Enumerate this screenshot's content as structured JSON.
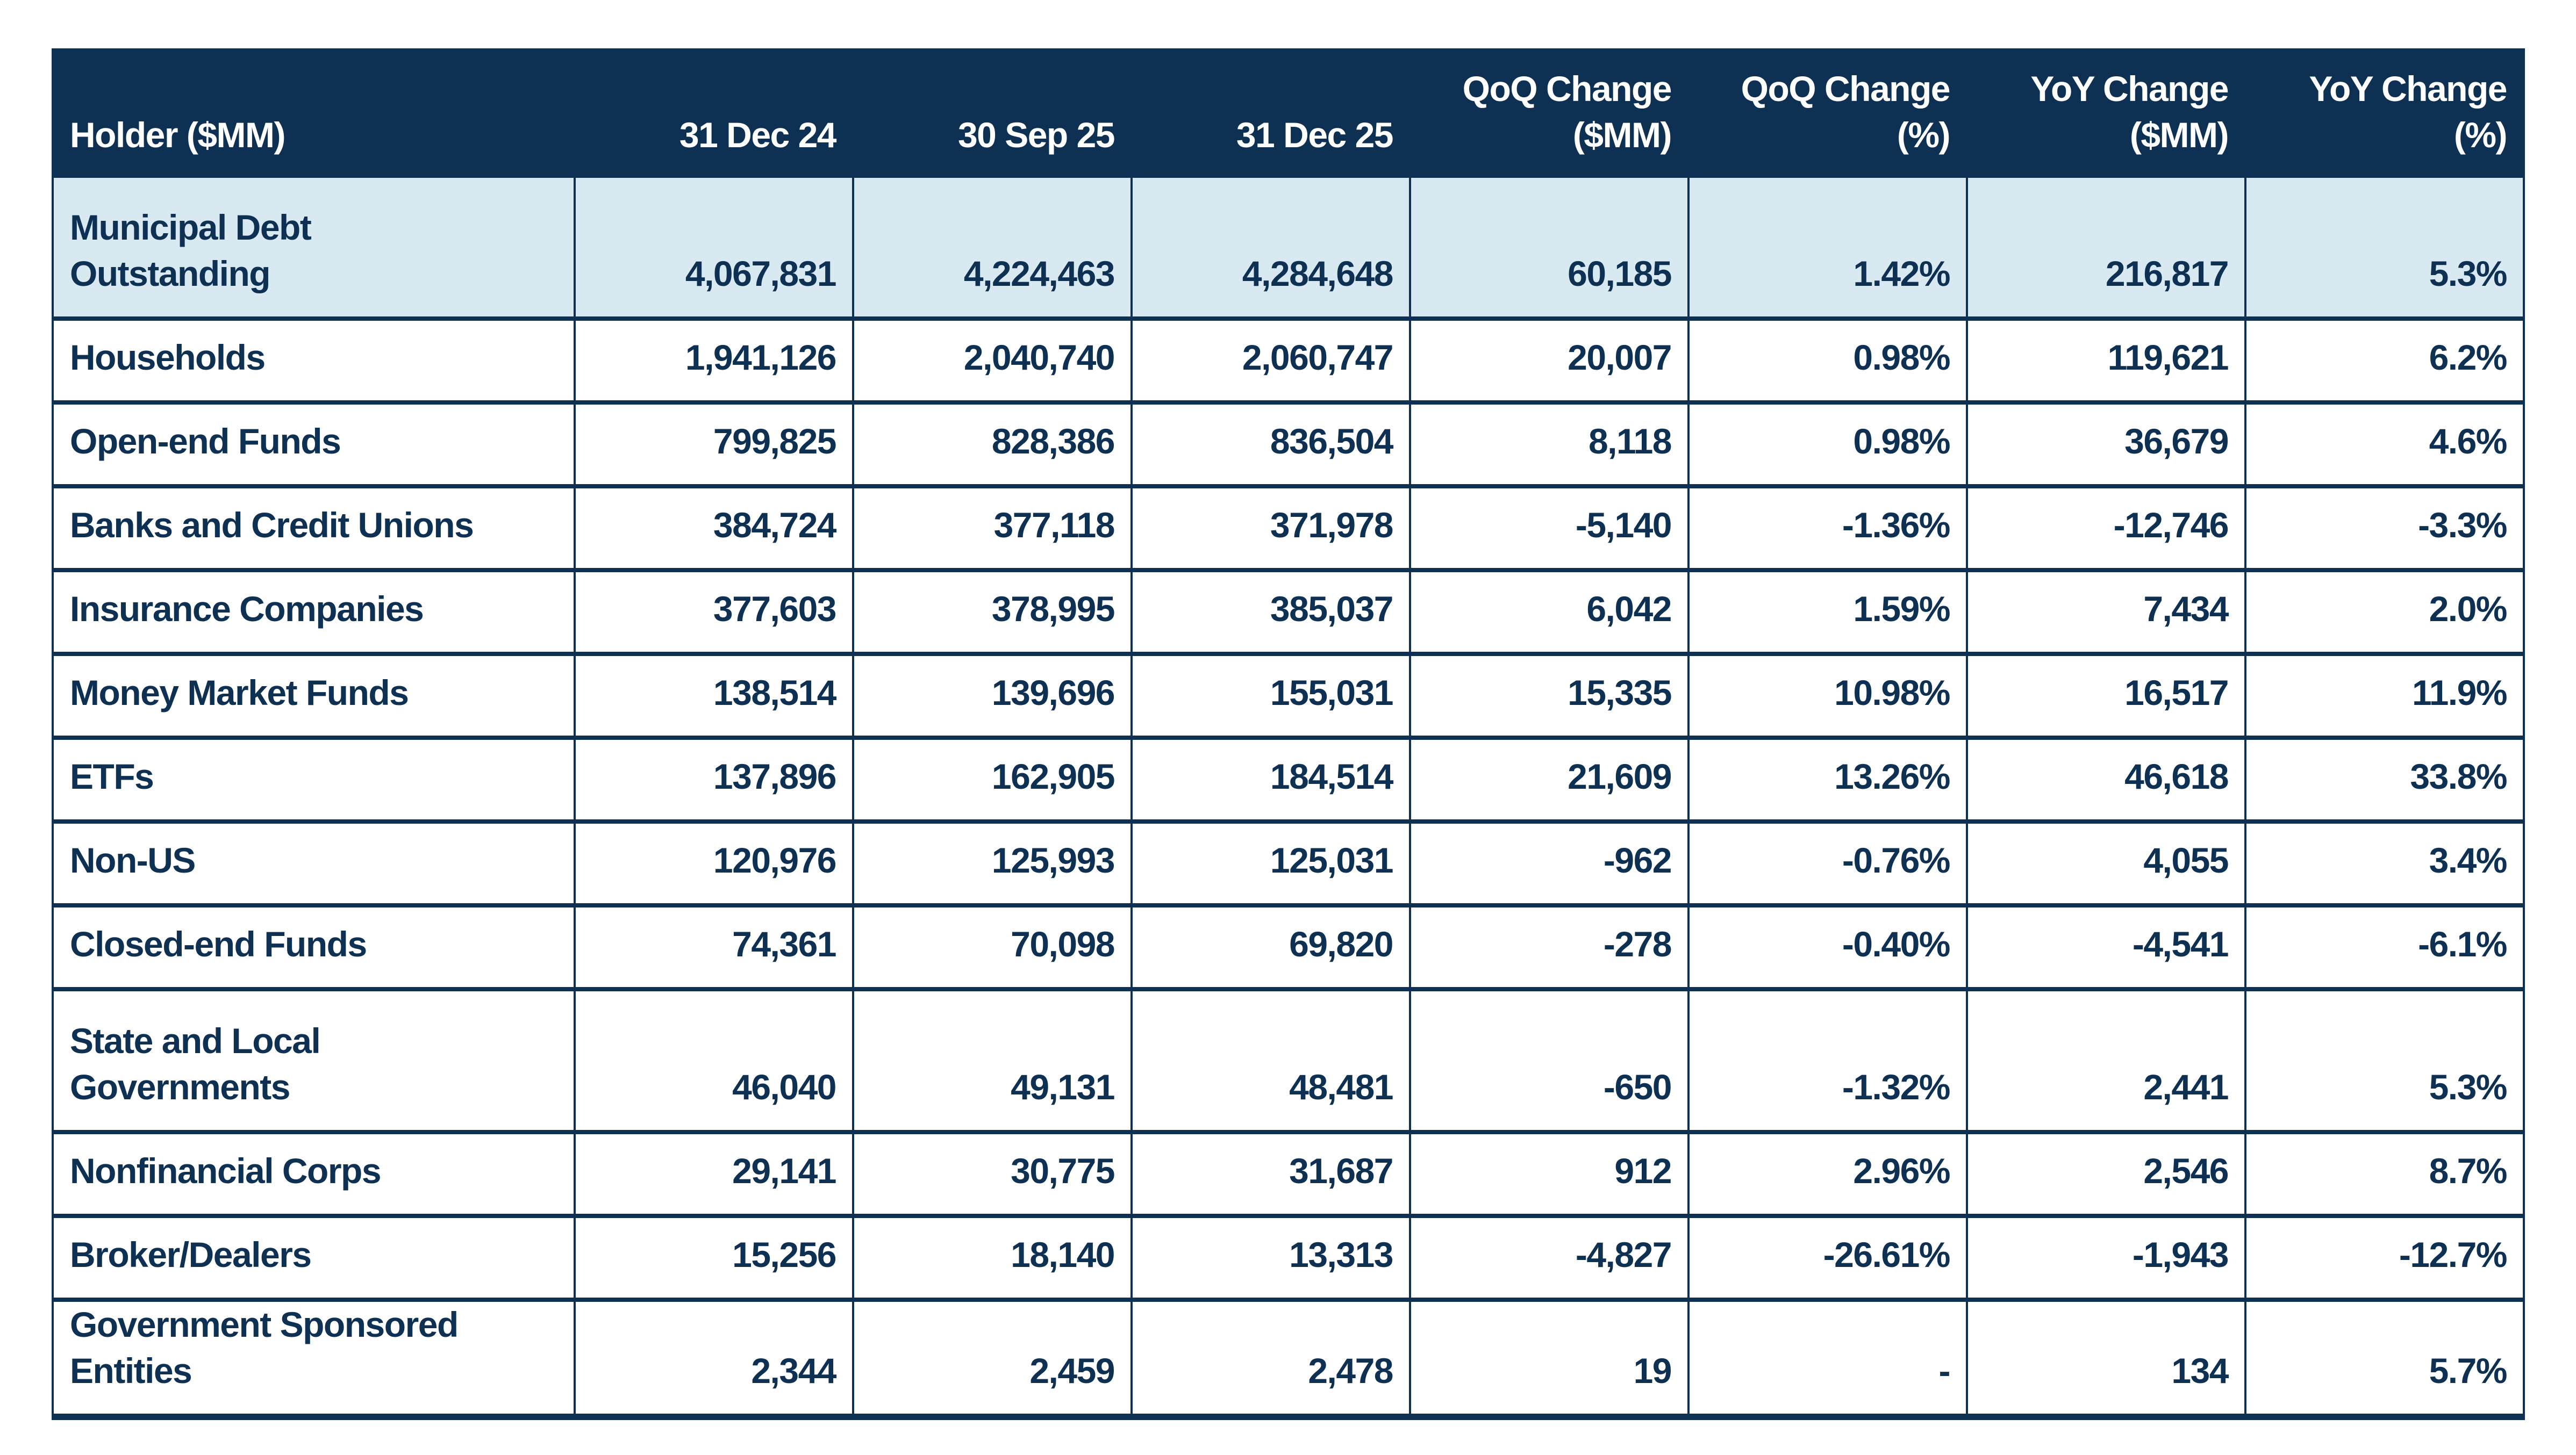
{
  "table": {
    "columns": [
      {
        "label": "Holder ($MM)"
      },
      {
        "label": "31 Dec 24"
      },
      {
        "label": "30 Sep 25"
      },
      {
        "label": "31 Dec 25"
      },
      {
        "label": "QoQ Change\n($MM)"
      },
      {
        "label": "QoQ Change\n(%)"
      },
      {
        "label": "YoY Change\n($MM)"
      },
      {
        "label": "YoY Change\n(%)"
      }
    ],
    "rows": [
      {
        "holder": "Municipal Debt\nOutstanding",
        "highlight": true,
        "values": [
          "4,067,831",
          "4,224,463",
          "4,284,648",
          "60,185",
          "1.42%",
          "216,817",
          "5.3%"
        ]
      },
      {
        "holder": "Households",
        "values": [
          "1,941,126",
          "2,040,740",
          "2,060,747",
          "20,007",
          "0.98%",
          "119,621",
          "6.2%"
        ]
      },
      {
        "holder": "Open-end Funds",
        "values": [
          "799,825",
          "828,386",
          "836,504",
          "8,118",
          "0.98%",
          "36,679",
          "4.6%"
        ]
      },
      {
        "holder": "Banks and Credit Unions",
        "values": [
          "384,724",
          "377,118",
          "371,978",
          "-5,140",
          "-1.36%",
          "-12,746",
          "-3.3%"
        ]
      },
      {
        "holder": "Insurance Companies",
        "values": [
          "377,603",
          "378,995",
          "385,037",
          "6,042",
          "1.59%",
          "7,434",
          "2.0%"
        ]
      },
      {
        "holder": "Money Market Funds",
        "values": [
          "138,514",
          "139,696",
          "155,031",
          "15,335",
          "10.98%",
          "16,517",
          "11.9%"
        ]
      },
      {
        "holder": "ETFs",
        "values": [
          "137,896",
          "162,905",
          "184,514",
          "21,609",
          "13.26%",
          "46,618",
          "33.8%"
        ]
      },
      {
        "holder": "Non-US",
        "values": [
          "120,976",
          "125,993",
          "125,031",
          "-962",
          "-0.76%",
          "4,055",
          "3.4%"
        ]
      },
      {
        "holder": "Closed-end Funds",
        "values": [
          "74,361",
          "70,098",
          "69,820",
          "-278",
          "-0.40%",
          "-4,541",
          "-6.1%"
        ]
      },
      {
        "holder": "State and Local\nGovernments",
        "values": [
          "46,040",
          "49,131",
          "48,481",
          "-650",
          "-1.32%",
          "2,441",
          "5.3%"
        ]
      },
      {
        "holder": "Nonfinancial Corps",
        "values": [
          "29,141",
          "30,775",
          "31,687",
          "912",
          "2.96%",
          "2,546",
          "8.7%"
        ]
      },
      {
        "holder": "Broker/Dealers",
        "values": [
          "15,256",
          "18,140",
          "13,313",
          "-4,827",
          "-26.61%",
          "-1,943",
          "-12.7%"
        ]
      },
      {
        "holder": "Government Sponsored\nEntities",
        "values": [
          "2,344",
          "2,459",
          "2,478",
          "19",
          "-",
          "134",
          "5.7%"
        ]
      }
    ]
  },
  "colors": {
    "header_bg": "#0e3153",
    "header_text": "#ffffff",
    "highlight_row_bg": "#d8e9f2",
    "body_text": "#0e3153",
    "border": "#0e3153"
  }
}
